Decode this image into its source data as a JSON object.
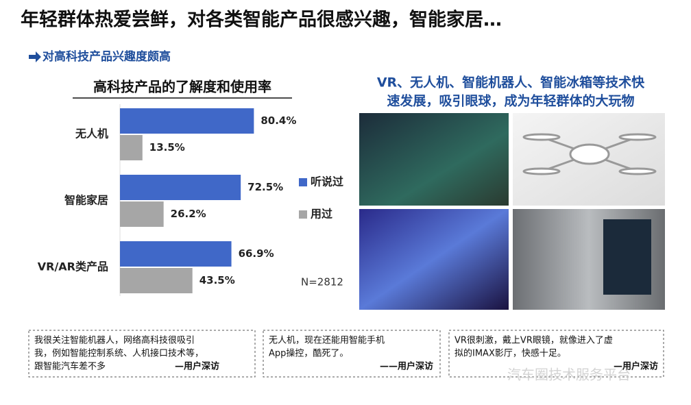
{
  "header": {
    "title": "年轻群体热爱尝鲜，对各类智能产品很感兴趣，智能家居…",
    "subtitle": "对高科技产品兴趣度颇高"
  },
  "chart_data": {
    "type": "hbar",
    "title": "高科技产品的了解度和使用率",
    "categories": [
      "无人机",
      "智能家居",
      "VR/AR类产品"
    ],
    "series": [
      {
        "name": "听说过",
        "color": "#4068c8",
        "values": [
          80.4,
          72.5,
          66.9
        ],
        "value_labels": [
          "80.4%",
          "72.5%",
          "66.9%"
        ]
      },
      {
        "name": "用过",
        "color": "#a6a6a6",
        "values": [
          13.5,
          26.2,
          43.5
        ],
        "value_labels": [
          "13.5%",
          "26.2%",
          "43.5%"
        ]
      }
    ],
    "xlim": [
      0,
      100
    ],
    "annotation": "N=2812"
  },
  "side": {
    "caption": [
      "VR、无人机、智能机器人、智能冰箱等技术快",
      "速发展，吸引眼球，成为年轻群体的大玩物"
    ]
  },
  "quotes": [
    {
      "lines": [
        "我很关注智能机器人，网络高科技很吸引",
        "我，例如智能控制系统、人机接口技术等，",
        "跟智能汽车差不多"
      ],
      "source": "—用户深访"
    },
    {
      "lines": [
        "无人机，现在还能用智能手机",
        "App操控，酷死了。"
      ],
      "source": "——用户深访"
    },
    {
      "lines": [
        "VR很刺激，戴上VR眼镜，就像进入了虚",
        "拟的IMAX影厅，快感十足。"
      ],
      "source": "—用户深访"
    }
  ],
  "watermark": "汽车圈技术服务平台"
}
